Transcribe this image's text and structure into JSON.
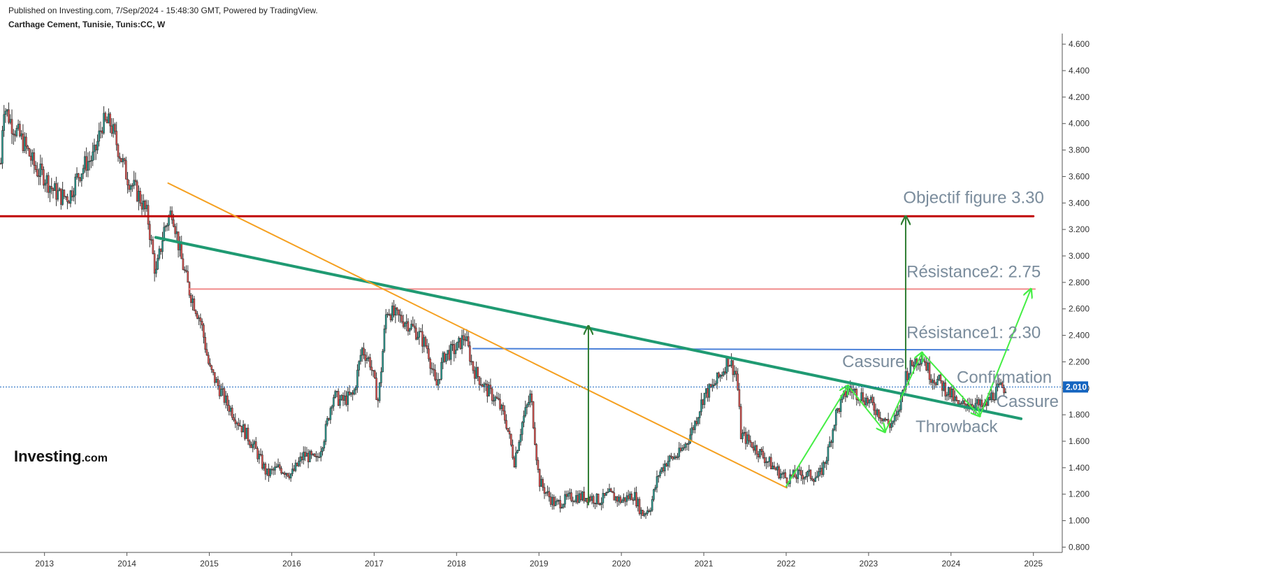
{
  "header": {
    "published": "Published on Investing.com, 7/Sep/2024 - 15:48:30 GMT, Powered by TradingView.",
    "symbol": "Carthage Cement, Tunisie, Tunis:CC, W"
  },
  "logo": {
    "main": "Investing",
    "sub": ".com"
  },
  "chart_data": {
    "type": "candlestick",
    "title": "Carthage Cement, Tunisie, Tunis:CC, W",
    "x_ticks": [
      "2013",
      "2014",
      "2015",
      "2016",
      "2017",
      "2018",
      "2019",
      "2020",
      "2021",
      "2022",
      "2023",
      "2024",
      "2025"
    ],
    "y_ticks": [
      "4.600",
      "4.400",
      "4.200",
      "4.000",
      "3.800",
      "3.600",
      "3.400",
      "3.200",
      "3.000",
      "2.800",
      "2.600",
      "2.400",
      "2.200",
      "2.000",
      "1.800",
      "1.600",
      "1.400",
      "1.200",
      "1.000",
      "0.800"
    ],
    "ylim": [
      0.76,
      4.68
    ],
    "xlim": [
      2012.46,
      2025.35
    ],
    "last_price": {
      "value": 2.01,
      "label": "2.010"
    },
    "colors": {
      "up": "#26a69a",
      "down": "#ef5350",
      "border": "#333333"
    },
    "price_path": [
      [
        2012.47,
        3.7
      ],
      [
        2012.5,
        4.15
      ],
      [
        2012.6,
        4.0
      ],
      [
        2012.75,
        3.85
      ],
      [
        2012.9,
        3.65
      ],
      [
        2013.0,
        3.6
      ],
      [
        2013.1,
        3.5
      ],
      [
        2013.2,
        3.45
      ],
      [
        2013.3,
        3.45
      ],
      [
        2013.4,
        3.6
      ],
      [
        2013.5,
        3.7
      ],
      [
        2013.6,
        3.75
      ],
      [
        2013.7,
        4.0
      ],
      [
        2013.8,
        4.0
      ],
      [
        2013.9,
        3.8
      ],
      [
        2014.0,
        3.6
      ],
      [
        2014.15,
        3.45
      ],
      [
        2014.25,
        3.3
      ],
      [
        2014.35,
        2.85
      ],
      [
        2014.45,
        3.2
      ],
      [
        2014.55,
        3.35
      ],
      [
        2014.65,
        3.0
      ],
      [
        2014.75,
        2.75
      ],
      [
        2014.9,
        2.5
      ],
      [
        2015.0,
        2.15
      ],
      [
        2015.2,
        1.9
      ],
      [
        2015.4,
        1.7
      ],
      [
        2015.55,
        1.55
      ],
      [
        2015.7,
        1.35
      ],
      [
        2015.85,
        1.4
      ],
      [
        2016.0,
        1.35
      ],
      [
        2016.15,
        1.5
      ],
      [
        2016.3,
        1.45
      ],
      [
        2016.4,
        1.65
      ],
      [
        2016.5,
        1.95
      ],
      [
        2016.6,
        1.9
      ],
      [
        2016.75,
        1.95
      ],
      [
        2016.85,
        2.3
      ],
      [
        2016.95,
        2.2
      ],
      [
        2017.05,
        1.9
      ],
      [
        2017.15,
        2.6
      ],
      [
        2017.25,
        2.55
      ],
      [
        2017.4,
        2.5
      ],
      [
        2017.55,
        2.4
      ],
      [
        2017.65,
        2.3
      ],
      [
        2017.75,
        2.0
      ],
      [
        2017.85,
        2.25
      ],
      [
        2018.0,
        2.3
      ],
      [
        2018.1,
        2.4
      ],
      [
        2018.2,
        2.15
      ],
      [
        2018.35,
        2.0
      ],
      [
        2018.5,
        1.9
      ],
      [
        2018.6,
        1.75
      ],
      [
        2018.7,
        1.45
      ],
      [
        2018.8,
        1.75
      ],
      [
        2018.9,
        1.95
      ],
      [
        2019.0,
        1.3
      ],
      [
        2019.1,
        1.2
      ],
      [
        2019.2,
        1.12
      ],
      [
        2019.4,
        1.18
      ],
      [
        2019.6,
        1.18
      ],
      [
        2019.75,
        1.15
      ],
      [
        2019.85,
        1.2
      ],
      [
        2020.0,
        1.15
      ],
      [
        2020.15,
        1.2
      ],
      [
        2020.25,
        1.05
      ],
      [
        2020.35,
        1.1
      ],
      [
        2020.45,
        1.35
      ],
      [
        2020.55,
        1.45
      ],
      [
        2020.7,
        1.5
      ],
      [
        2020.8,
        1.6
      ],
      [
        2020.9,
        1.75
      ],
      [
        2021.0,
        1.95
      ],
      [
        2021.1,
        2.0
      ],
      [
        2021.2,
        2.1
      ],
      [
        2021.3,
        2.22
      ],
      [
        2021.4,
        2.1
      ],
      [
        2021.45,
        1.65
      ],
      [
        2021.55,
        1.6
      ],
      [
        2021.7,
        1.5
      ],
      [
        2021.85,
        1.4
      ],
      [
        2022.0,
        1.32
      ],
      [
        2022.2,
        1.35
      ],
      [
        2022.4,
        1.33
      ],
      [
        2022.5,
        1.5
      ],
      [
        2022.6,
        1.8
      ],
      [
        2022.75,
        2.0
      ],
      [
        2022.9,
        1.95
      ],
      [
        2023.0,
        1.9
      ],
      [
        2023.15,
        1.8
      ],
      [
        2023.25,
        1.72
      ],
      [
        2023.35,
        1.78
      ],
      [
        2023.45,
        2.1
      ],
      [
        2023.55,
        2.2
      ],
      [
        2023.65,
        2.25
      ],
      [
        2023.75,
        2.1
      ],
      [
        2023.85,
        2.05
      ],
      [
        2024.0,
        1.95
      ],
      [
        2024.1,
        1.85
      ],
      [
        2024.2,
        1.9
      ],
      [
        2024.3,
        1.88
      ],
      [
        2024.4,
        1.85
      ],
      [
        2024.5,
        1.95
      ],
      [
        2024.6,
        2.0
      ],
      [
        2024.68,
        2.01
      ]
    ],
    "lines": [
      {
        "name": "resistance-objectif",
        "color": "#c00000",
        "width": 3,
        "points": [
          [
            2012.46,
            3.3
          ],
          [
            2025.0,
            3.3
          ]
        ]
      },
      {
        "name": "resistance-2",
        "color": "#f08a8a",
        "width": 2,
        "points": [
          [
            2014.75,
            2.75
          ],
          [
            2025.02,
            2.75
          ]
        ]
      },
      {
        "name": "resistance-1",
        "color": "#4a80d8",
        "width": 2,
        "points": [
          [
            2018.2,
            2.3
          ],
          [
            2024.7,
            2.29
          ]
        ]
      },
      {
        "name": "trendline-green",
        "color": "#1f9a72",
        "width": 4,
        "points": [
          [
            2014.35,
            3.14
          ],
          [
            2024.85,
            1.77
          ]
        ]
      },
      {
        "name": "trendline-orange",
        "color": "#f5a020",
        "width": 2,
        "points": [
          [
            2014.5,
            3.55
          ],
          [
            2022.0,
            1.25
          ]
        ]
      },
      {
        "name": "arrow-up-1",
        "color": "#2e7d32",
        "width": 2,
        "arrow": true,
        "points": [
          [
            2019.6,
            1.12
          ],
          [
            2019.6,
            2.47
          ]
        ]
      },
      {
        "name": "arrow-up-2",
        "color": "#2e7d32",
        "width": 2,
        "arrow": true,
        "points": [
          [
            2023.45,
            2.15
          ],
          [
            2023.45,
            3.3
          ]
        ]
      },
      {
        "name": "zigzag-1",
        "color": "#44ee44",
        "width": 2,
        "arrow": true,
        "points": [
          [
            2022.0,
            1.26
          ],
          [
            2022.75,
            2.02
          ]
        ]
      },
      {
        "name": "zigzag-2",
        "color": "#44ee44",
        "width": 2,
        "arrow": true,
        "points": [
          [
            2022.75,
            2.02
          ],
          [
            2023.2,
            1.67
          ]
        ]
      },
      {
        "name": "zigzag-3",
        "color": "#44ee44",
        "width": 2,
        "arrow": true,
        "points": [
          [
            2023.2,
            1.67
          ],
          [
            2023.65,
            2.27
          ]
        ]
      },
      {
        "name": "zigzag-4",
        "color": "#44ee44",
        "width": 2,
        "arrow": true,
        "points": [
          [
            2023.65,
            2.27
          ],
          [
            2024.35,
            1.79
          ]
        ]
      },
      {
        "name": "zigzag-5",
        "color": "#44ee44",
        "width": 2,
        "arrow": true,
        "points": [
          [
            2024.35,
            1.79
          ],
          [
            2024.97,
            2.75
          ]
        ]
      }
    ],
    "annotations": [
      {
        "text": "Objectif figure 3.30",
        "x": 2023.42,
        "y": 3.4
      },
      {
        "text": "Résistance2: 2.75",
        "x": 2023.46,
        "y": 2.84
      },
      {
        "text": "Résistance1: 2.30",
        "x": 2023.46,
        "y": 2.38
      },
      {
        "text": "Cassure",
        "x": 2022.68,
        "y": 2.16
      },
      {
        "text": "Confirmation",
        "x": 2024.07,
        "y": 2.04
      },
      {
        "text": "Cassure",
        "x": 2024.55,
        "y": 1.86
      },
      {
        "text": "Throwback",
        "x": 2023.57,
        "y": 1.67
      }
    ]
  }
}
